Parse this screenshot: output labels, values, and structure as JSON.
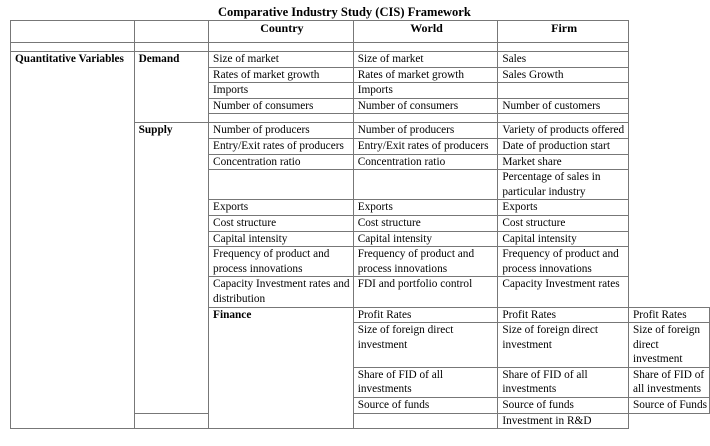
{
  "title": "Comparative Industry Study (CIS) Framework",
  "columns": {
    "country": "Country",
    "world": "World",
    "firm": "Firm"
  },
  "row_label": "Quantitative Variables",
  "groups": {
    "demand": "Demand",
    "supply": "Supply",
    "finance": "Finance"
  },
  "demand": {
    "country": [
      "Size of market",
      "Rates of market growth",
      "Imports",
      "Number of consumers"
    ],
    "world": [
      "Size of market",
      "Rates of market growth",
      "Imports",
      "Number of consumers"
    ],
    "firm": [
      "Sales",
      "Sales Growth",
      "",
      "Number of customers"
    ]
  },
  "supply": {
    "r1": {
      "country": "Number of producers",
      "world": "Number of producers",
      "firm": "Variety of products offered"
    },
    "r2": {
      "country": "Entry/Exit rates of producers",
      "world": "Entry/Exit rates of producers",
      "firm": "Date of production start"
    },
    "r3": {
      "country": "Concentration  ratio",
      "world": "Concentration  ratio",
      "firm": "Market share"
    },
    "r4": {
      "country": "",
      "world": "",
      "firm": "Percentage of sales in particular industry"
    },
    "r5": {
      "country": "Exports",
      "world": "Exports",
      "firm": "Exports"
    },
    "r6": {
      "country": "Cost structure",
      "world": "Cost structure",
      "firm": "Cost structure"
    },
    "r7": {
      "country": "Capital  intensity",
      "world": "Capital  intensity",
      "firm": "Capital  intensity"
    },
    "r8": {
      "country": "Frequency of product and process innovations",
      "world": "Frequency of product and process innovations",
      "firm": "Frequency of product and process innovations"
    },
    "r9": {
      "country": "Capacity  Investment rates and distribution",
      "world": "FDI and portfolio control",
      "firm": "Capacity  Investment rates"
    }
  },
  "finance": {
    "r1": {
      "country": "Profit Rates",
      "world": "Profit Rates",
      "firm": "Profit Rates"
    },
    "r2": {
      "country": "Size of foreign direct investment",
      "world": "Size of foreign direct investment",
      "firm": "Size of foreign direct investment"
    },
    "r3": {
      "country": "Share of FID of all investments",
      "world": "Share of FID of all investments",
      "firm": "Share of FID of all investments"
    },
    "r4": {
      "country": "Source of funds",
      "world": "Source of funds",
      "firm": "Source of Funds"
    },
    "r5": {
      "country": "",
      "world": "",
      "firm": "Investment in R&D"
    }
  }
}
